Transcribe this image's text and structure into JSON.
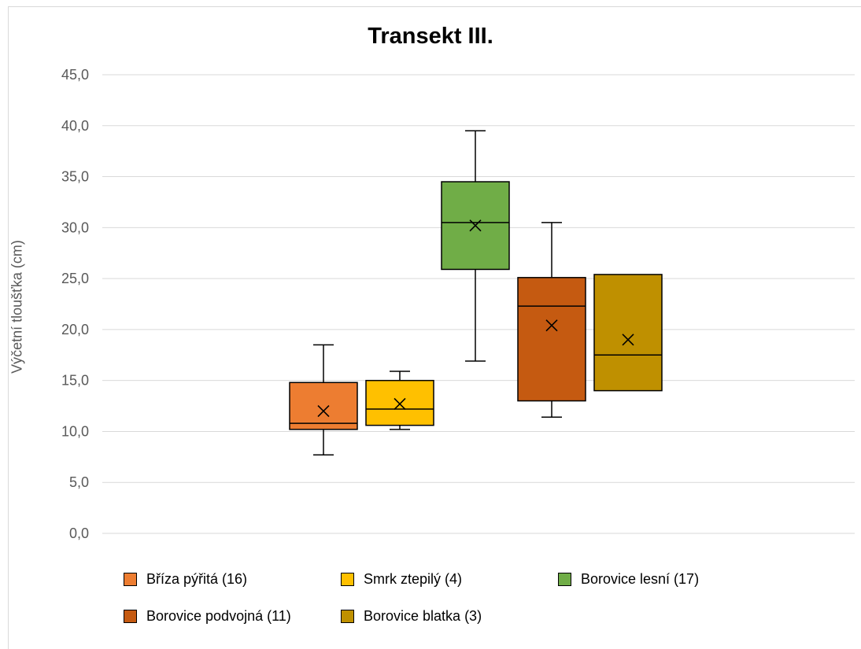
{
  "chart_data": {
    "type": "box",
    "title": "Transekt III.",
    "xlabel": "",
    "ylabel": "Výčetní tloušťka (cm)",
    "ylim": [
      0,
      45
    ],
    "ytick_step": 5,
    "ytick_labels": [
      "0,0",
      "5,0",
      "10,0",
      "15,0",
      "20,0",
      "25,0",
      "30,0",
      "35,0",
      "40,0",
      "45,0"
    ],
    "grid": true,
    "legend_position": "bottom",
    "series": [
      {
        "name": "Bříza pýřitá (16)",
        "color": "#ed7d31",
        "min": 7.7,
        "q1": 10.2,
        "median": 10.8,
        "q3": 14.8,
        "max": 18.5,
        "mean": 12.0
      },
      {
        "name": "Smrk ztepilý (4)",
        "color": "#ffc000",
        "min": 10.2,
        "q1": 10.6,
        "median": 12.2,
        "q3": 15.0,
        "max": 15.9,
        "mean": 12.7
      },
      {
        "name": "Borovice lesní (17)",
        "color": "#70ad47",
        "min": 16.9,
        "q1": 25.9,
        "median": 30.5,
        "q3": 34.5,
        "max": 39.5,
        "mean": 30.2
      },
      {
        "name": "Borovice podvojná (11)",
        "color": "#c55a11",
        "min": 11.4,
        "q1": 13.0,
        "median": 22.3,
        "q3": 25.1,
        "max": 30.5,
        "mean": 20.4
      },
      {
        "name": "Borovice blatka (3)",
        "color": "#bf9000",
        "min": 14.0,
        "q1": 14.0,
        "median": 17.5,
        "q3": 25.4,
        "max": 25.4,
        "mean": 19.0
      }
    ]
  }
}
